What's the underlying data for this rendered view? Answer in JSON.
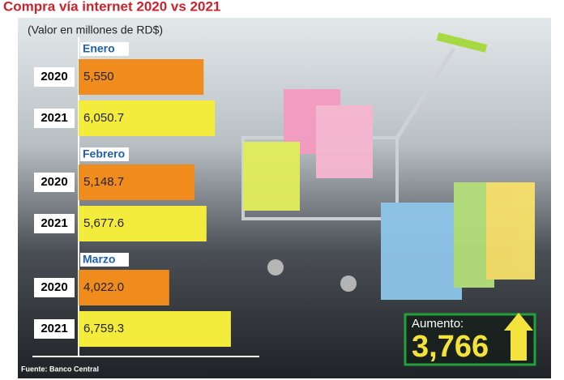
{
  "chart_data": {
    "type": "bar",
    "title": "Compra vía internet 2020 vs 2021",
    "subtitle": "(Valor en millones de RD$)",
    "categories": [
      "Enero",
      "Febrero",
      "Marzo"
    ],
    "series": [
      {
        "name": "2020",
        "color": "#f08c1e",
        "values": [
          5550,
          5148.7,
          4022.0
        ],
        "value_labels": [
          "5,550",
          "5,148.7",
          "4,022.0"
        ]
      },
      {
        "name": "2021",
        "color": "#f4ec3c",
        "values": [
          6050.7,
          5677.6,
          6759.3
        ],
        "value_labels": [
          "6,050.7",
          "5,677.6",
          "6,759.3"
        ]
      }
    ],
    "annotation": {
      "text": "Aumento:",
      "value": 3766,
      "value_label": "3,766"
    },
    "source": "Fuente: Banco Central"
  }
}
